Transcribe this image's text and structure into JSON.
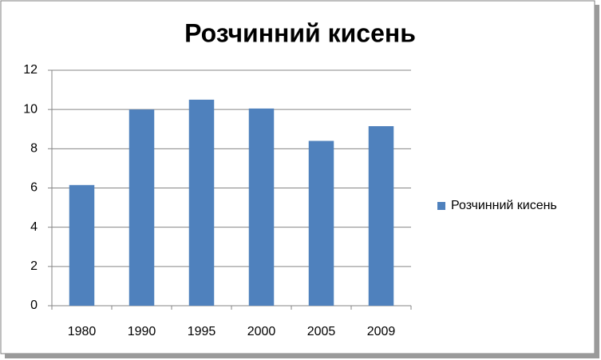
{
  "chart_data": {
    "type": "bar",
    "title": "Розчинний кисень",
    "categories": [
      "1980",
      "1990",
      "1995",
      "2000",
      "2005",
      "2009"
    ],
    "series": [
      {
        "name": "Розчинний кисень",
        "color": "#4f81bd",
        "values": [
          6.15,
          10.0,
          10.5,
          10.05,
          8.4,
          9.15
        ]
      }
    ],
    "ylim": [
      0,
      12
    ],
    "yticks": [
      0,
      2,
      4,
      6,
      8,
      10,
      12
    ],
    "grid": true,
    "legend": "right"
  }
}
